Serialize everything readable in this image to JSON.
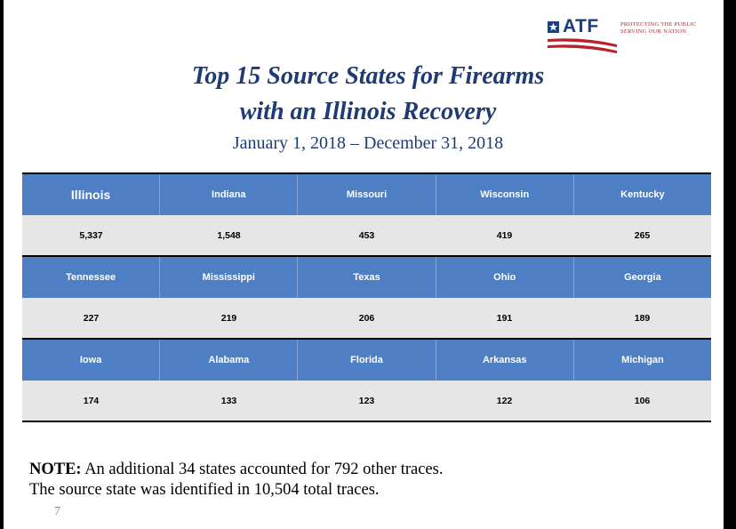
{
  "logo": {
    "text": "ATF",
    "tagline_line1": "Protecting the Public",
    "tagline_line2": "Serving Our Nation"
  },
  "title": {
    "line1": "Top 15 Source States for Firearms",
    "line2": "with an Illinois Recovery"
  },
  "subtitle": "January 1, 2018 – December 31, 2018",
  "table": {
    "rows": [
      {
        "states": [
          "Illinois",
          "Indiana",
          "Missouri",
          "Wisconsin",
          "Kentucky"
        ],
        "values": [
          "5,337",
          "1,548",
          "453",
          "419",
          "265"
        ]
      },
      {
        "states": [
          "Tennessee",
          "Mississippi",
          "Texas",
          "Ohio",
          "Georgia"
        ],
        "values": [
          "227",
          "219",
          "206",
          "191",
          "189"
        ]
      },
      {
        "states": [
          "Iowa",
          "Alabama",
          "Florida",
          "Arkansas",
          "Michigan"
        ],
        "values": [
          "174",
          "133",
          "123",
          "122",
          "106"
        ]
      }
    ]
  },
  "note": {
    "label": "NOTE:",
    "line1_rest": " An additional 34 states accounted for 792 other traces.",
    "line2": "The source state was identified in 10,504 total traces."
  },
  "page_number": "7",
  "colors": {
    "header_blue": "#4e7fc4",
    "title_navy": "#1f3b73",
    "value_row_gray": "#e6e6e6",
    "atf_red": "#b8232b"
  }
}
